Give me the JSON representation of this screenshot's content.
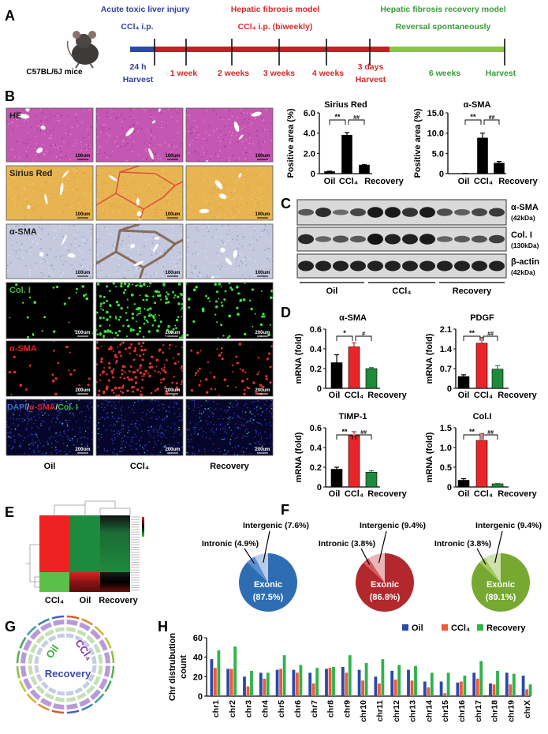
{
  "panel_labels": [
    "A",
    "B",
    "C",
    "D",
    "E",
    "F",
    "G",
    "H"
  ],
  "timeline": {
    "mouse_label": "C57BL/6J mice",
    "acute_title": "Acute toxic liver injury",
    "acute_sub": "CCl₄ i.p.",
    "fibrosis_title": "Hepatic fibrosis model",
    "fibrosis_sub": "CCl₄ i.p. (biweekly)",
    "recovery_title": "Hepatic fibrosis recovery model",
    "recovery_sub": "Reversal spontaneously",
    "marks": [
      {
        "line1": "24 h",
        "line2": "Harvest",
        "phase": "acute"
      },
      {
        "line1": "1 week",
        "phase": "fibrosis"
      },
      {
        "line1": "2 weeks",
        "phase": "fibrosis"
      },
      {
        "line1": "3 weeks",
        "phase": "fibrosis"
      },
      {
        "line1": "4 weeks",
        "phase": "fibrosis"
      },
      {
        "line1": "3 days",
        "line2": "Harvest",
        "phase": "fibrosis"
      },
      {
        "line1": "6 weeks",
        "phase": "recovery"
      },
      {
        "line1": "Harvest",
        "phase": "recovery"
      }
    ],
    "colors": {
      "acute": "#2f3f9c",
      "fibrosis": "#d42a2a",
      "recovery": "#3c9a3c",
      "bar_acute": "#2b4aa8",
      "bar_fibrosis": "#c42024",
      "bar_recovery": "#8cc63f"
    }
  },
  "histology": {
    "groups": [
      "Oil",
      "CCl₄",
      "Recovery"
    ],
    "rows": [
      {
        "label": "HE",
        "scale": "100um",
        "stain": "he"
      },
      {
        "label": "Sirius Red",
        "scale": "100um",
        "stain": "sirius"
      },
      {
        "label": "α-SMA",
        "scale": "100um",
        "stain": "ihc"
      },
      {
        "label": "Col. I",
        "scale": "200um",
        "stain": "green"
      },
      {
        "label": "α-SMA",
        "scale": "200um",
        "stain": "red"
      },
      {
        "label": "",
        "scale": "200um",
        "stain": "merge"
      }
    ],
    "merge_label": [
      {
        "text": "DAPI",
        "color": "#3a6fd0"
      },
      {
        "text": "/",
        "color": "#cfcfcf"
      },
      {
        "text": "α-SMA",
        "color": "#e02020"
      },
      {
        "text": "/",
        "color": "#cfcfcf"
      },
      {
        "text": "Col. I",
        "color": "#3cc03c"
      }
    ]
  },
  "blot": {
    "groups": [
      "Oil",
      "CCl₄",
      "Recovery"
    ],
    "rows": [
      {
        "name": "α-SMA",
        "kda": "(42kDa)",
        "intensity": [
          0.45,
          0.8,
          0.3,
          0.6,
          0.95,
          0.95,
          0.75,
          0.95,
          0.55,
          0.4,
          0.6,
          0.7
        ]
      },
      {
        "name": "Col. I",
        "kda": "(130kDa)",
        "intensity": [
          0.85,
          0.35,
          0.5,
          0.45,
          1,
          0.9,
          0.9,
          0.95,
          0.35,
          0.45,
          0.5,
          0.65
        ]
      },
      {
        "name": "β-actin",
        "kda": "(42kDa)",
        "intensity": [
          0.9,
          0.9,
          0.9,
          0.9,
          0.9,
          0.9,
          0.9,
          0.9,
          0.9,
          0.9,
          0.9,
          0.9
        ]
      }
    ]
  },
  "heatmap": {
    "columns": [
      "CCl₄",
      "Oil",
      "Recovery"
    ]
  },
  "circos": {
    "oil": "Oil",
    "ccl4": "CCl₄",
    "recovery": "Recovery"
  },
  "chart_data": [
    {
      "type": "bar",
      "panel": "B",
      "title": "Sirius Red",
      "ylabel": "Positive area (%)",
      "categories": [
        "Oil",
        "CCl₄",
        "Recovery"
      ],
      "values": [
        0.2,
        3.8,
        0.85
      ],
      "errors": [
        0.05,
        0.25,
        0.05
      ],
      "ylim": [
        0,
        6
      ],
      "yticks": [
        "0",
        "2.0",
        "4.0",
        "6.0"
      ],
      "significance": [
        "**",
        "##"
      ],
      "colors": [
        "#000000",
        "#000000",
        "#000000"
      ]
    },
    {
      "type": "bar",
      "panel": "B",
      "title": "α-SMA",
      "ylabel": "Positive area (%)",
      "categories": [
        "Oil",
        "CCl₄",
        "Recovery"
      ],
      "values": [
        0.05,
        8.8,
        2.6
      ],
      "errors": [
        0.02,
        1.2,
        0.4
      ],
      "ylim": [
        0,
        15
      ],
      "yticks": [
        "0",
        "5.0",
        "10.0",
        "15.0"
      ],
      "significance": [
        "**",
        "##"
      ],
      "colors": [
        "#000000",
        "#000000",
        "#000000"
      ]
    },
    {
      "type": "bar",
      "panel": "D",
      "title": "α-SMA",
      "ylabel": "mRNA (fold)",
      "categories": [
        "Oil",
        "CCl₄",
        "Recovery"
      ],
      "values": [
        0.26,
        0.42,
        0.2
      ],
      "errors": [
        0.08,
        0.04,
        0.01
      ],
      "ylim": [
        0,
        0.6
      ],
      "yticks": [
        "0",
        "0.2",
        "0.4",
        "0.6"
      ],
      "significance": [
        "*",
        "#"
      ],
      "colors": [
        "#000000",
        "#e8262a",
        "#1f8a3c"
      ]
    },
    {
      "type": "bar",
      "panel": "D",
      "title": "PDGF",
      "ylabel": "mRNA (fold)",
      "categories": [
        "Oil",
        "CCl₄",
        "Recovery"
      ],
      "values": [
        0.42,
        1.6,
        0.68
      ],
      "errors": [
        0.06,
        0.2,
        0.12
      ],
      "ylim": [
        0,
        2.1
      ],
      "yticks": [
        "0",
        "0.7",
        "1.4",
        "2.1"
      ],
      "significance": [
        "**",
        "##"
      ],
      "colors": [
        "#000000",
        "#e8262a",
        "#1f8a3c"
      ]
    },
    {
      "type": "bar",
      "panel": "D",
      "title": "TIMP-1",
      "ylabel": "mRNA (fold)",
      "categories": [
        "Oil",
        "CCl₄",
        "Recovery"
      ],
      "values": [
        0.18,
        0.52,
        0.15
      ],
      "errors": [
        0.02,
        0.04,
        0.015
      ],
      "ylim": [
        0,
        0.6
      ],
      "yticks": [
        "0",
        "0.2",
        "0.4",
        "0.6"
      ],
      "significance": [
        "**",
        "##"
      ],
      "colors": [
        "#000000",
        "#e8262a",
        "#1f8a3c"
      ]
    },
    {
      "type": "bar",
      "panel": "D",
      "title": "Col.I",
      "ylabel": "mRNA (fold)",
      "categories": [
        "Oil",
        "CCl₄",
        "Recovery"
      ],
      "values": [
        0.17,
        1.18,
        0.08
      ],
      "errors": [
        0.04,
        0.17,
        0.01
      ],
      "ylim": [
        0,
        1.5
      ],
      "yticks": [
        "0",
        "0.5",
        "1.0",
        "1.5"
      ],
      "significance": [
        "**",
        "##"
      ],
      "colors": [
        "#000000",
        "#e8262a",
        "#1f8a3c"
      ]
    },
    {
      "type": "pie",
      "panel": "F",
      "slices": [
        {
          "label": "Exonic",
          "value": 87.5
        },
        {
          "label": "Intronic",
          "value": 4.9
        },
        {
          "label": "Intergenic",
          "value": 7.6
        }
      ],
      "colors": [
        "#2f6db3",
        "#5b8fd0",
        "#b9cbe6"
      ]
    },
    {
      "type": "pie",
      "panel": "F",
      "slices": [
        {
          "label": "Exonic",
          "value": 86.8
        },
        {
          "label": "Intronic",
          "value": 3.8
        },
        {
          "label": "Intergenic",
          "value": 9.4
        }
      ],
      "colors": [
        "#b3282c",
        "#d45a5a",
        "#ebb4b4"
      ]
    },
    {
      "type": "pie",
      "panel": "F",
      "slices": [
        {
          "label": "Exonic",
          "value": 89.1
        },
        {
          "label": "Intronic",
          "value": 3.8
        },
        {
          "label": "Intergenic",
          "value": 9.4
        }
      ],
      "colors": [
        "#77a832",
        "#a0c957",
        "#cde2ae"
      ]
    },
    {
      "type": "bar",
      "panel": "H",
      "ylabel": [
        "Chr distrubution",
        "count"
      ],
      "legend": "top-right",
      "ylim": [
        0,
        60
      ],
      "yticks": [
        "0",
        "20",
        "40",
        "60"
      ],
      "categories": [
        "chr1",
        "chr2",
        "chr3",
        "chr4",
        "chr5",
        "chr6",
        "chr7",
        "chr8",
        "chr9",
        "chr10",
        "chr11",
        "chr12",
        "chr13",
        "chr14",
        "chr15",
        "chr16",
        "chr17",
        "chr18",
        "chr19",
        "chrX"
      ],
      "series": [
        {
          "name": "Oil",
          "color": "#2b4aa8",
          "values": [
            38,
            28,
            20,
            24,
            27,
            27,
            24,
            28,
            30,
            27,
            20,
            26,
            27,
            15,
            15,
            14,
            24,
            13,
            24,
            21
          ]
        },
        {
          "name": "CCl₄",
          "color": "#ef5a3a",
          "values": [
            29,
            28,
            10,
            18,
            28,
            24,
            13,
            29,
            24,
            16,
            13,
            17,
            16,
            9,
            3,
            15,
            18,
            12,
            12,
            7
          ]
        },
        {
          "name": "Recovery",
          "color": "#2fb34a",
          "values": [
            47,
            51,
            26,
            24,
            42,
            32,
            29,
            30,
            42,
            34,
            38,
            32,
            31,
            24,
            24,
            21,
            36,
            26,
            23,
            12
          ]
        }
      ]
    }
  ]
}
